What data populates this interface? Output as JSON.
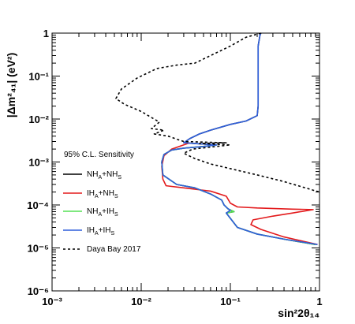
{
  "chart_data": {
    "type": "line",
    "title": "",
    "xlabel": "sin²2θ₁₄",
    "ylabel": "|Δm²₄₁| (eV²)",
    "xscale": "log",
    "yscale": "log",
    "xlim": [
      0.001,
      1
    ],
    "ylim": [
      1e-06,
      1
    ],
    "xticks": [
      {
        "value": 0.001,
        "label": "10⁻³"
      },
      {
        "value": 0.01,
        "label": "10⁻²"
      },
      {
        "value": 0.1,
        "label": "10⁻¹"
      },
      {
        "value": 1,
        "label": "1"
      }
    ],
    "yticks": [
      {
        "value": 1e-06,
        "label": "10⁻⁶"
      },
      {
        "value": 1e-05,
        "label": "10⁻⁵"
      },
      {
        "value": 0.0001,
        "label": "10⁻⁴"
      },
      {
        "value": 0.001,
        "label": "10⁻³"
      },
      {
        "value": 0.01,
        "label": "10⁻²"
      },
      {
        "value": 0.1,
        "label": "10⁻¹"
      },
      {
        "value": 1,
        "label": "1"
      }
    ],
    "grid": false,
    "legend": {
      "title": "95% C.L. Sensitivity",
      "position": "center-left"
    },
    "series": [
      {
        "name": "NHₐ+NHₛ",
        "label_main": "NH",
        "label_sub1": "A",
        "label_mid": "+NH",
        "label_sub2": "S",
        "color": "#000000",
        "dash": "solid",
        "points": [
          [
            0.22,
            1.0
          ],
          [
            0.215,
            0.9
          ],
          [
            0.205,
            0.5
          ],
          [
            0.205,
            0.02
          ],
          [
            0.2,
            0.012
          ],
          [
            0.15,
            0.009
          ],
          [
            0.1,
            0.0075
          ],
          [
            0.06,
            0.0055
          ],
          [
            0.045,
            0.0045
          ],
          [
            0.035,
            0.0035
          ],
          [
            0.03,
            0.0028
          ],
          [
            0.07,
            0.0025
          ],
          [
            0.05,
            0.0023
          ],
          [
            0.03,
            0.0021
          ],
          [
            0.022,
            0.0019
          ],
          [
            0.018,
            0.0015
          ],
          [
            0.017,
            0.001
          ],
          [
            0.0175,
            0.0005
          ],
          [
            0.025,
            0.0003
          ],
          [
            0.04,
            0.00025
          ],
          [
            0.06,
            0.00018
          ],
          [
            0.08,
            0.00013
          ],
          [
            0.085,
            0.0001
          ],
          [
            0.095,
            8e-05
          ],
          [
            0.11,
            7e-05
          ],
          [
            0.09,
            6.5e-05
          ],
          [
            0.12,
            3e-05
          ],
          [
            0.2,
            2.1e-05
          ],
          [
            0.4,
            1.6e-05
          ],
          [
            0.9,
            1.2e-05
          ]
        ]
      },
      {
        "name": "IHₐ+NHₛ",
        "label_main": "IH",
        "label_sub1": "A",
        "label_mid": "+NH",
        "label_sub2": "S",
        "color": "#e31a1c",
        "dash": "solid",
        "points": [
          [
            0.035,
            0.0028
          ],
          [
            0.022,
            0.002
          ],
          [
            0.018,
            0.0014
          ],
          [
            0.017,
            0.0008
          ],
          [
            0.0175,
            0.0004
          ],
          [
            0.019,
            0.00028
          ],
          [
            0.03,
            0.00025
          ],
          [
            0.06,
            0.00021
          ],
          [
            0.09,
            0.00016
          ],
          [
            0.1,
            0.00011
          ],
          [
            0.12,
            9e-05
          ],
          [
            0.2,
            8.5e-05
          ],
          [
            0.5,
            8e-05
          ],
          [
            0.85,
            7.8e-05
          ],
          [
            0.5,
            6.5e-05
          ],
          [
            0.3,
            5.5e-05
          ],
          [
            0.18,
            4.5e-05
          ],
          [
            0.17,
            3.5e-05
          ],
          [
            0.22,
            2.7e-05
          ],
          [
            0.4,
            1.8e-05
          ],
          [
            0.95,
            1.2e-05
          ]
        ]
      },
      {
        "name": "NHₐ+IHₛ",
        "label_main": "NH",
        "label_sub1": "A",
        "label_mid": "+IH",
        "label_sub2": "S",
        "color": "#55e055",
        "dash": "solid",
        "points": [
          [
            0.07,
            0.0025
          ],
          [
            0.05,
            0.0023
          ],
          [
            0.03,
            0.0021
          ],
          [
            0.022,
            0.0019
          ],
          [
            0.018,
            0.0015
          ],
          [
            0.017,
            0.001
          ],
          [
            0.0175,
            0.0005
          ],
          [
            0.025,
            0.0003
          ],
          [
            0.04,
            0.00025
          ],
          [
            0.06,
            0.00018
          ],
          [
            0.08,
            0.00013
          ],
          [
            0.085,
            0.0001
          ],
          [
            0.095,
            8e-05
          ],
          [
            0.11,
            7e-05
          ],
          [
            0.09,
            6.5e-05
          ],
          [
            0.12,
            3e-05
          ],
          [
            0.2,
            2.1e-05
          ],
          [
            0.4,
            1.6e-05
          ],
          [
            0.9,
            1.2e-05
          ]
        ]
      },
      {
        "name": "IHₐ+IHₛ",
        "label_main": "IH",
        "label_sub1": "A",
        "label_mid": "+IH",
        "label_sub2": "S",
        "color": "#2f5fdc",
        "dash": "solid",
        "points": [
          [
            0.22,
            1.0
          ],
          [
            0.215,
            0.9
          ],
          [
            0.205,
            0.5
          ],
          [
            0.205,
            0.02
          ],
          [
            0.2,
            0.012
          ],
          [
            0.15,
            0.009
          ],
          [
            0.1,
            0.0075
          ],
          [
            0.06,
            0.0055
          ],
          [
            0.045,
            0.0045
          ],
          [
            0.035,
            0.0035
          ],
          [
            0.03,
            0.0028
          ],
          [
            0.07,
            0.0025
          ],
          [
            0.05,
            0.0023
          ],
          [
            0.03,
            0.0021
          ],
          [
            0.022,
            0.0019
          ],
          [
            0.018,
            0.0015
          ],
          [
            0.017,
            0.001
          ],
          [
            0.0175,
            0.0005
          ],
          [
            0.025,
            0.0003
          ],
          [
            0.04,
            0.00025
          ],
          [
            0.06,
            0.00018
          ],
          [
            0.08,
            0.00013
          ],
          [
            0.085,
            0.0001
          ],
          [
            0.092,
            8.5e-05
          ],
          [
            0.1,
            7.5e-05
          ],
          [
            0.09,
            6.5e-05
          ],
          [
            0.12,
            3e-05
          ],
          [
            0.2,
            2.1e-05
          ],
          [
            0.4,
            1.6e-05
          ],
          [
            0.95,
            1.2e-05
          ]
        ]
      },
      {
        "name": "Daya Bay 2017",
        "label_main": "Daya Bay 2017",
        "label_sub1": "",
        "label_mid": "",
        "label_sub2": "",
        "color": "#000000",
        "dash": "dashed",
        "points": [
          [
            0.22,
            1.0
          ],
          [
            0.15,
            0.8
          ],
          [
            0.1,
            0.5
          ],
          [
            0.06,
            0.3
          ],
          [
            0.04,
            0.2
          ],
          [
            0.025,
            0.18
          ],
          [
            0.015,
            0.15
          ],
          [
            0.009,
            0.09
          ],
          [
            0.006,
            0.05
          ],
          [
            0.0052,
            0.03
          ],
          [
            0.0065,
            0.022
          ],
          [
            0.01,
            0.015
          ],
          [
            0.012,
            0.012
          ],
          [
            0.016,
            0.0085
          ],
          [
            0.013,
            0.006
          ],
          [
            0.018,
            0.0055
          ],
          [
            0.014,
            0.0045
          ],
          [
            0.02,
            0.004
          ],
          [
            0.024,
            0.0035
          ],
          [
            0.03,
            0.003
          ],
          [
            0.09,
            0.0028
          ],
          [
            0.045,
            0.0027
          ],
          [
            0.1,
            0.0025
          ],
          [
            0.038,
            0.002
          ],
          [
            0.03,
            0.0016
          ],
          [
            0.04,
            0.0012
          ],
          [
            0.06,
            0.0009
          ],
          [
            0.1,
            0.0007
          ],
          [
            0.2,
            0.0005
          ],
          [
            0.4,
            0.00035
          ],
          [
            1.0,
            0.0002
          ]
        ]
      }
    ]
  }
}
